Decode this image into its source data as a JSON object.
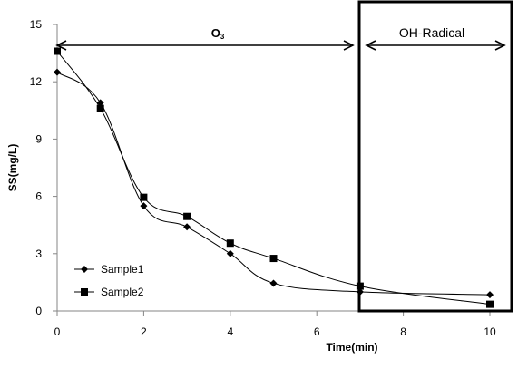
{
  "chart_data": {
    "type": "line",
    "xlabel": "Time(min)",
    "ylabel": "SS(mg/L)",
    "xlim": [
      0,
      10
    ],
    "ylim": [
      0,
      15
    ],
    "xticks": [
      "0",
      "2",
      "4",
      "6",
      "8",
      "10"
    ],
    "yticks": [
      "0",
      "3",
      "6",
      "9",
      "12",
      "15"
    ],
    "grid": false,
    "legend_position": "bottom-left",
    "series": [
      {
        "name": "Sample1",
        "marker": "diamond",
        "x": [
          0,
          1,
          2,
          3,
          4,
          5,
          7,
          10
        ],
        "y": [
          12.5,
          10.9,
          5.5,
          4.4,
          3.0,
          1.45,
          1.0,
          0.85
        ]
      },
      {
        "name": "Sample2",
        "marker": "square",
        "x": [
          0,
          1,
          2,
          3,
          4,
          5,
          7,
          10
        ],
        "y": [
          13.6,
          10.6,
          5.95,
          4.95,
          3.55,
          2.75,
          1.3,
          0.35
        ]
      }
    ],
    "annotations": [
      {
        "text": "O",
        "subscript": "3",
        "from_x": 0,
        "to_x": 7,
        "y": 13.8
      },
      {
        "text": "OH-Radical",
        "from_x": 7,
        "to_x": 10,
        "y": 13.8
      }
    ]
  }
}
